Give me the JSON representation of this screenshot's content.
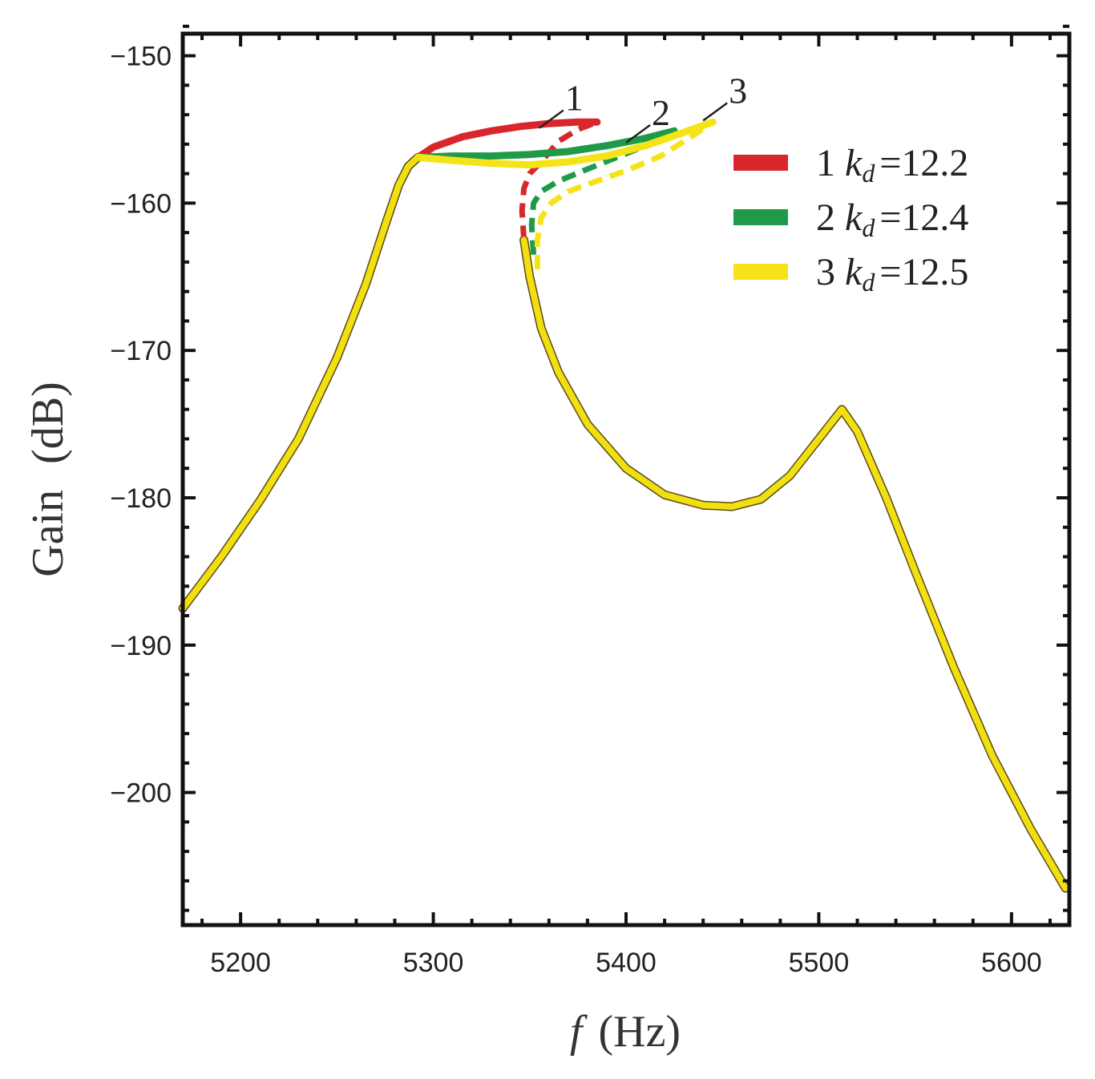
{
  "chart_data": {
    "type": "line",
    "title": "",
    "xlabel": "f",
    "xlabel_unit": "(Hz)",
    "ylabel": "Gain",
    "ylabel_unit": "(dB)",
    "xlim": [
      5170,
      5630
    ],
    "ylim": [
      -209,
      -148.5
    ],
    "xticks": [
      5200,
      5300,
      5400,
      5500,
      5600
    ],
    "yticks": [
      -150,
      -160,
      -170,
      -180,
      -190,
      -200
    ],
    "xtick_labels": [
      "5200",
      "5300",
      "5400",
      "5500",
      "5600"
    ],
    "ytick_labels": [
      "−150",
      "−160",
      "−170",
      "−180",
      "−190",
      "−200"
    ],
    "grid": false,
    "legend_position": "top-right",
    "base_curve": {
      "x": [
        5170,
        5190,
        5210,
        5230,
        5250,
        5265,
        5275,
        5282,
        5287,
        5292
      ],
      "y": [
        -187.5,
        -184,
        -180.2,
        -176,
        -170.5,
        -165.5,
        -161.5,
        -158.8,
        -157.5,
        -156.9
      ]
    },
    "lower_branch": {
      "x": [
        5347,
        5350,
        5356,
        5365,
        5380,
        5400,
        5420,
        5440,
        5455,
        5470,
        5485,
        5500,
        5512,
        5520,
        5535,
        5550,
        5570,
        5590,
        5610,
        5628
      ],
      "y": [
        -162.5,
        -165,
        -168.5,
        -171.5,
        -175,
        -178,
        -179.8,
        -180.5,
        -180.6,
        -180.1,
        -178.5,
        -176,
        -174,
        -175.5,
        -180,
        -185,
        -191.5,
        -197.5,
        -202.5,
        -206.5
      ]
    },
    "series": [
      {
        "name": "1",
        "label_num": "1",
        "label_k": "k",
        "label_sub": "d",
        "label_value": "=12.2",
        "color": "#d9262c",
        "upper_x": [
          5292,
          5300,
          5315,
          5330,
          5345,
          5360,
          5375,
          5385
        ],
        "upper_y": [
          -156.9,
          -156.2,
          -155.5,
          -155.1,
          -154.8,
          -154.6,
          -154.5,
          -154.5
        ],
        "dashed_x": [
          5347,
          5346,
          5347,
          5350,
          5356,
          5365,
          5375,
          5385
        ],
        "dashed_y": [
          -162.5,
          -160.5,
          -159,
          -158,
          -157.2,
          -155.8,
          -155,
          -154.5
        ],
        "tag_x": 5355,
        "tag_y": -154.9
      },
      {
        "name": "2",
        "label_num": "2",
        "label_k": "k",
        "label_sub": "d",
        "label_value": "=12.4",
        "color": "#1f9a48",
        "upper_x": [
          5292,
          5310,
          5330,
          5350,
          5370,
          5390,
          5410,
          5425
        ],
        "upper_y": [
          -156.9,
          -156.8,
          -156.8,
          -156.7,
          -156.5,
          -156.1,
          -155.6,
          -155.1
        ],
        "dashed_x": [
          5352,
          5351,
          5352,
          5356,
          5365,
          5378,
          5395,
          5412,
          5425
        ],
        "dashed_y": [
          -163.5,
          -161.5,
          -160,
          -159.2,
          -158.5,
          -157.8,
          -156.9,
          -156,
          -155.1
        ],
        "tag_x": 5400,
        "tag_y": -155.9
      },
      {
        "name": "3",
        "label_num": "3",
        "label_k": "k",
        "label_sub": "d",
        "label_value": "=12.5",
        "color": "#f5e31a",
        "upper_x": [
          5292,
          5310,
          5330,
          5350,
          5370,
          5390,
          5410,
          5430,
          5445
        ],
        "upper_y": [
          -156.9,
          -157.1,
          -157.3,
          -157.4,
          -157.2,
          -156.8,
          -156.1,
          -155.2,
          -154.5
        ],
        "dashed_x": [
          5354,
          5354,
          5356,
          5361,
          5370,
          5385,
          5400,
          5418,
          5435,
          5445
        ],
        "dashed_y": [
          -164.5,
          -162.5,
          -161,
          -160,
          -159.2,
          -158.5,
          -157.8,
          -156.8,
          -155.4,
          -154.5
        ],
        "tag_x": 5440,
        "tag_y": -154.4
      }
    ]
  }
}
